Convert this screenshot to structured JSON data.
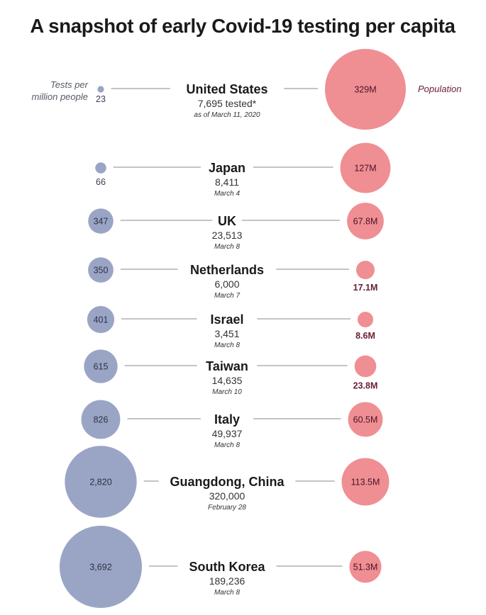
{
  "chart_data": {
    "type": "bubble",
    "title": "A snapshot of early Covid-19 testing per capita",
    "left_label": [
      "Tests per",
      "million people"
    ],
    "right_label": "Population",
    "colors": {
      "tests": "#9aa5c6",
      "population": "#ef8f93"
    },
    "rows": [
      {
        "country": "United States",
        "tested": "7,695 tested*",
        "date": "as of March 11, 2020",
        "tests_per_million": 23,
        "tests_label": "23",
        "population_m": 329,
        "population_label": "329M"
      },
      {
        "country": "Japan",
        "tested": "8,411",
        "date": "March 4",
        "tests_per_million": 66,
        "tests_label": "66",
        "population_m": 127,
        "population_label": "127M"
      },
      {
        "country": "UK",
        "tested": "23,513",
        "date": "March 8",
        "tests_per_million": 347,
        "tests_label": "347",
        "population_m": 67.8,
        "population_label": "67.8M"
      },
      {
        "country": "Netherlands",
        "tested": "6,000",
        "date": "March 7",
        "tests_per_million": 350,
        "tests_label": "350",
        "population_m": 17.1,
        "population_label": "17.1M"
      },
      {
        "country": "Israel",
        "tested": "3,451",
        "date": "March 8",
        "tests_per_million": 401,
        "tests_label": "401",
        "population_m": 8.6,
        "population_label": "8.6M"
      },
      {
        "country": "Taiwan",
        "tested": "14,635",
        "date": "March 10",
        "tests_per_million": 615,
        "tests_label": "615",
        "population_m": 23.8,
        "population_label": "23.8M"
      },
      {
        "country": "Italy",
        "tested": "49,937",
        "date": "March 8",
        "tests_per_million": 826,
        "tests_label": "826",
        "population_m": 60.5,
        "population_label": "60.5M"
      },
      {
        "country": "Guangdong, China",
        "tested": "320,000",
        "date": "February 28",
        "tests_per_million": 2820,
        "tests_label": "2,820",
        "population_m": 113.5,
        "population_label": "113.5M"
      },
      {
        "country": "South Korea",
        "tested": "189,236",
        "date": "March 8",
        "tests_per_million": 3692,
        "tests_label": "3,692",
        "population_m": 51.3,
        "population_label": "51.3M"
      }
    ]
  }
}
